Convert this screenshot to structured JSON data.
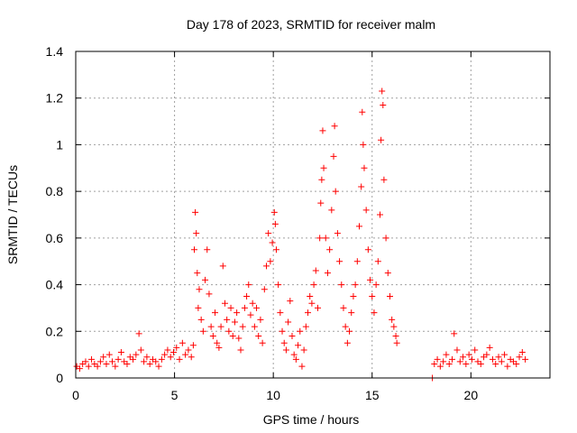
{
  "chart_data": {
    "type": "scatter",
    "title": "Day 178 of 2023, SRMTID for receiver malm",
    "xlabel": "GPS time / hours",
    "ylabel": "SRMTID / TECUs",
    "xlim": [
      0,
      24
    ],
    "ylim": [
      0,
      1.4
    ],
    "x_ticks": [
      0,
      5,
      10,
      15,
      20
    ],
    "x_tick_labels": [
      "0",
      "5",
      "10",
      "15",
      "20"
    ],
    "y_ticks": [
      0,
      0.2,
      0.4,
      0.6,
      0.8,
      1.0,
      1.2,
      1.4
    ],
    "y_tick_labels": [
      "0",
      "0.2",
      "0.4",
      "0.6",
      "0.8",
      "1",
      "1.2",
      "1.4"
    ],
    "grid": true,
    "marker": "plus",
    "color": "#ff0000",
    "series": [
      {
        "name": "SRMTID",
        "points": [
          [
            0.05,
            0.05
          ],
          [
            0.2,
            0.04
          ],
          [
            0.35,
            0.06
          ],
          [
            0.5,
            0.07
          ],
          [
            0.65,
            0.05
          ],
          [
            0.8,
            0.08
          ],
          [
            0.95,
            0.06
          ],
          [
            1.1,
            0.05
          ],
          [
            1.25,
            0.07
          ],
          [
            1.4,
            0.09
          ],
          [
            1.55,
            0.06
          ],
          [
            1.7,
            0.1
          ],
          [
            1.85,
            0.07
          ],
          [
            2.0,
            0.05
          ],
          [
            2.15,
            0.08
          ],
          [
            2.3,
            0.11
          ],
          [
            2.45,
            0.07
          ],
          [
            2.6,
            0.06
          ],
          [
            2.75,
            0.09
          ],
          [
            2.9,
            0.08
          ],
          [
            3.05,
            0.1
          ],
          [
            3.2,
            0.19
          ],
          [
            3.3,
            0.12
          ],
          [
            3.45,
            0.07
          ],
          [
            3.6,
            0.09
          ],
          [
            3.75,
            0.06
          ],
          [
            3.9,
            0.08
          ],
          [
            4.05,
            0.07
          ],
          [
            4.2,
            0.05
          ],
          [
            4.35,
            0.08
          ],
          [
            4.5,
            0.1
          ],
          [
            4.65,
            0.12
          ],
          [
            4.8,
            0.09
          ],
          [
            4.95,
            0.11
          ],
          [
            5.1,
            0.13
          ],
          [
            5.25,
            0.08
          ],
          [
            5.4,
            0.15
          ],
          [
            5.55,
            0.1
          ],
          [
            5.7,
            0.12
          ],
          [
            5.85,
            0.09
          ],
          [
            5.95,
            0.14
          ],
          [
            6.0,
            0.55
          ],
          [
            6.05,
            0.71
          ],
          [
            6.1,
            0.62
          ],
          [
            6.15,
            0.45
          ],
          [
            6.2,
            0.3
          ],
          [
            6.25,
            0.38
          ],
          [
            6.35,
            0.25
          ],
          [
            6.45,
            0.2
          ],
          [
            6.55,
            0.42
          ],
          [
            6.65,
            0.55
          ],
          [
            6.75,
            0.36
          ],
          [
            6.85,
            0.22
          ],
          [
            6.95,
            0.18
          ],
          [
            7.05,
            0.28
          ],
          [
            7.15,
            0.15
          ],
          [
            7.25,
            0.13
          ],
          [
            7.35,
            0.22
          ],
          [
            7.45,
            0.48
          ],
          [
            7.55,
            0.32
          ],
          [
            7.65,
            0.25
          ],
          [
            7.75,
            0.2
          ],
          [
            7.85,
            0.3
          ],
          [
            7.95,
            0.18
          ],
          [
            8.05,
            0.24
          ],
          [
            8.15,
            0.28
          ],
          [
            8.25,
            0.17
          ],
          [
            8.35,
            0.12
          ],
          [
            8.45,
            0.22
          ],
          [
            8.55,
            0.3
          ],
          [
            8.65,
            0.35
          ],
          [
            8.75,
            0.4
          ],
          [
            8.85,
            0.27
          ],
          [
            8.95,
            0.32
          ],
          [
            9.05,
            0.22
          ],
          [
            9.15,
            0.3
          ],
          [
            9.25,
            0.18
          ],
          [
            9.35,
            0.25
          ],
          [
            9.45,
            0.15
          ],
          [
            9.55,
            0.38
          ],
          [
            9.65,
            0.48
          ],
          [
            9.75,
            0.62
          ],
          [
            9.85,
            0.5
          ],
          [
            9.95,
            0.58
          ],
          [
            10.05,
            0.71
          ],
          [
            10.1,
            0.66
          ],
          [
            10.15,
            0.55
          ],
          [
            10.25,
            0.4
          ],
          [
            10.35,
            0.28
          ],
          [
            10.45,
            0.2
          ],
          [
            10.55,
            0.15
          ],
          [
            10.65,
            0.12
          ],
          [
            10.75,
            0.24
          ],
          [
            10.85,
            0.33
          ],
          [
            10.95,
            0.18
          ],
          [
            11.05,
            0.1
          ],
          [
            11.15,
            0.08
          ],
          [
            11.25,
            0.14
          ],
          [
            11.35,
            0.2
          ],
          [
            11.45,
            0.05
          ],
          [
            11.55,
            0.12
          ],
          [
            11.65,
            0.22
          ],
          [
            11.75,
            0.28
          ],
          [
            11.85,
            0.35
          ],
          [
            11.95,
            0.32
          ],
          [
            12.05,
            0.4
          ],
          [
            12.15,
            0.46
          ],
          [
            12.25,
            0.3
          ],
          [
            12.35,
            0.6
          ],
          [
            12.4,
            0.75
          ],
          [
            12.45,
            0.85
          ],
          [
            12.5,
            1.06
          ],
          [
            12.55,
            0.9
          ],
          [
            12.65,
            0.6
          ],
          [
            12.75,
            0.45
          ],
          [
            12.85,
            0.55
          ],
          [
            12.95,
            0.72
          ],
          [
            13.05,
            0.95
          ],
          [
            13.1,
            1.08
          ],
          [
            13.15,
            0.8
          ],
          [
            13.25,
            0.62
          ],
          [
            13.35,
            0.5
          ],
          [
            13.45,
            0.4
          ],
          [
            13.55,
            0.3
          ],
          [
            13.65,
            0.22
          ],
          [
            13.75,
            0.15
          ],
          [
            13.85,
            0.2
          ],
          [
            13.95,
            0.28
          ],
          [
            14.05,
            0.35
          ],
          [
            14.15,
            0.4
          ],
          [
            14.25,
            0.5
          ],
          [
            14.35,
            0.65
          ],
          [
            14.45,
            0.82
          ],
          [
            14.5,
            1.14
          ],
          [
            14.55,
            1.0
          ],
          [
            14.6,
            0.9
          ],
          [
            14.7,
            0.72
          ],
          [
            14.8,
            0.55
          ],
          [
            14.9,
            0.42
          ],
          [
            15.0,
            0.35
          ],
          [
            15.1,
            0.28
          ],
          [
            15.2,
            0.4
          ],
          [
            15.3,
            0.5
          ],
          [
            15.4,
            0.7
          ],
          [
            15.45,
            1.02
          ],
          [
            15.5,
            1.23
          ],
          [
            15.55,
            1.17
          ],
          [
            15.6,
            0.85
          ],
          [
            15.7,
            0.6
          ],
          [
            15.8,
            0.45
          ],
          [
            15.9,
            0.35
          ],
          [
            16.0,
            0.25
          ],
          [
            16.1,
            0.22
          ],
          [
            16.2,
            0.18
          ],
          [
            16.25,
            0.15
          ],
          [
            18.05,
            0.0
          ],
          [
            18.15,
            0.06
          ],
          [
            18.3,
            0.08
          ],
          [
            18.45,
            0.05
          ],
          [
            18.6,
            0.07
          ],
          [
            18.75,
            0.1
          ],
          [
            18.9,
            0.06
          ],
          [
            19.05,
            0.08
          ],
          [
            19.15,
            0.19
          ],
          [
            19.3,
            0.12
          ],
          [
            19.45,
            0.07
          ],
          [
            19.6,
            0.09
          ],
          [
            19.75,
            0.06
          ],
          [
            19.9,
            0.1
          ],
          [
            20.05,
            0.08
          ],
          [
            20.2,
            0.12
          ],
          [
            20.35,
            0.07
          ],
          [
            20.5,
            0.06
          ],
          [
            20.65,
            0.09
          ],
          [
            20.8,
            0.1
          ],
          [
            20.95,
            0.13
          ],
          [
            21.1,
            0.08
          ],
          [
            21.25,
            0.06
          ],
          [
            21.4,
            0.09
          ],
          [
            21.55,
            0.07
          ],
          [
            21.7,
            0.1
          ],
          [
            21.85,
            0.05
          ],
          [
            22.0,
            0.08
          ],
          [
            22.15,
            0.07
          ],
          [
            22.3,
            0.06
          ],
          [
            22.45,
            0.09
          ],
          [
            22.6,
            0.11
          ],
          [
            22.75,
            0.08
          ]
        ]
      }
    ]
  }
}
